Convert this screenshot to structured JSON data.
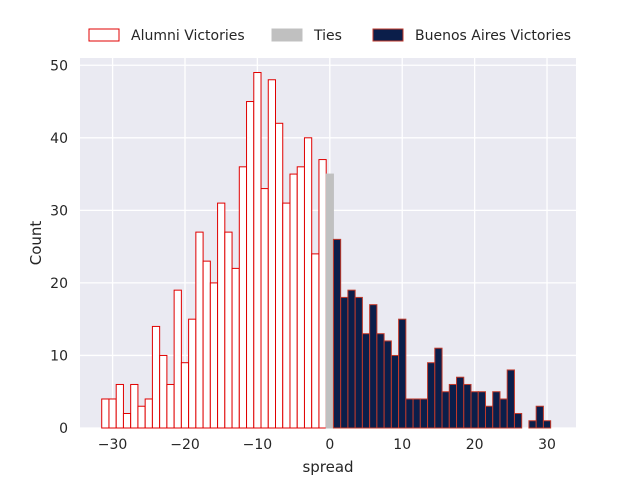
{
  "chart_data": {
    "type": "bar",
    "xlabel": "spread",
    "ylabel": "Count",
    "xlim": [
      -34.5,
      34
    ],
    "ylim": [
      0,
      51
    ],
    "xticks": [
      -30,
      -20,
      -10,
      0,
      10,
      20,
      30
    ],
    "yticks": [
      0,
      10,
      20,
      30,
      40,
      50
    ],
    "xtick_labels": [
      "−30",
      "−20",
      "−10",
      "0",
      "10",
      "20",
      "30"
    ],
    "ytick_labels": [
      "0",
      "10",
      "20",
      "30",
      "40",
      "50"
    ],
    "grid": true,
    "legend_position": "top",
    "legend": [
      {
        "label": "Alumni Victories",
        "style": "outline"
      },
      {
        "label": "Ties",
        "style": "gray"
      },
      {
        "label": "Buenos Aires Victories",
        "style": "navy"
      }
    ],
    "series": [
      {
        "name": "Alumni Victories",
        "x": [
          -31,
          -30,
          -29,
          -28,
          -27,
          -26,
          -25,
          -24,
          -23,
          -22,
          -21,
          -20,
          -19,
          -18,
          -17,
          -16,
          -15,
          -14,
          -13,
          -12,
          -11,
          -10,
          -9,
          -8,
          -7,
          -6,
          -5,
          -4,
          -3,
          -2,
          -1
        ],
        "values": [
          4,
          4,
          6,
          2,
          6,
          3,
          4,
          14,
          10,
          6,
          19,
          9,
          15,
          27,
          23,
          20,
          31,
          27,
          22,
          36,
          45,
          49,
          33,
          48,
          42,
          31,
          35,
          36,
          40,
          24,
          37
        ]
      },
      {
        "name": "Ties",
        "x": [
          0
        ],
        "values": [
          35
        ]
      },
      {
        "name": "Buenos Aires Victories",
        "x": [
          1,
          2,
          3,
          4,
          5,
          6,
          7,
          8,
          9,
          10,
          11,
          12,
          13,
          14,
          15,
          16,
          17,
          18,
          19,
          20,
          21,
          22,
          23,
          24,
          25,
          26,
          27,
          28,
          29,
          30
        ],
        "values": [
          26,
          18,
          19,
          18,
          13,
          17,
          13,
          12,
          10,
          15,
          4,
          4,
          4,
          9,
          11,
          5,
          6,
          7,
          6,
          5,
          5,
          3,
          5,
          4,
          8,
          2,
          0,
          1,
          3,
          1
        ]
      }
    ],
    "colors": {
      "background": "#eaeaf2",
      "grid": "#ffffff",
      "alumni_edge": "#e00000",
      "alumni_fill": "#ffffff",
      "ties_fill": "#c0c0c0",
      "ba_fill": "#0b1e4a",
      "ba_edge": "#c0392b"
    }
  }
}
